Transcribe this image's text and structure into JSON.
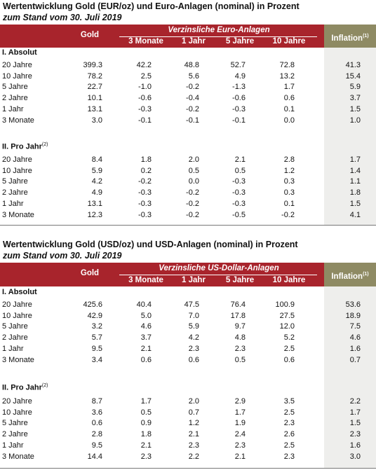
{
  "tables": [
    {
      "title": "Wertentwicklung Gold (EUR/oz) und Euro-Anlagen (nominal) in Prozent",
      "subtitle": "zum Stand vom 30. Juli 2019",
      "gold_header": "Gold",
      "span_header": "Verzinsliche Euro-Anlagen",
      "sub_headers": [
        "3 Monate",
        "1 Jahr",
        "5 Jahre",
        "10 Jahre"
      ],
      "inflation_header": "Inflation",
      "inflation_note": "(1)",
      "sections": [
        {
          "label": "I. Absolut",
          "note": "",
          "rows": [
            {
              "label": "20 Jahre",
              "values": [
                "399.3",
                "42.2",
                "48.8",
                "52.7",
                "72.8",
                "41.3"
              ]
            },
            {
              "label": "10 Jahre",
              "values": [
                "78.2",
                "2.5",
                "5.6",
                "4.9",
                "13.2",
                "15.4"
              ]
            },
            {
              "label": "5 Jahre",
              "values": [
                "22.7",
                "-1.0",
                "-0.2",
                "-1.3",
                "1.7",
                "5.9"
              ]
            },
            {
              "label": "2 Jahre",
              "values": [
                "10.1",
                "-0.6",
                "-0.4",
                "-0.6",
                "0.6",
                "3.7"
              ]
            },
            {
              "label": "1 Jahr",
              "values": [
                "13.1",
                "-0.3",
                "-0.2",
                "-0.3",
                "0.1",
                "1.5"
              ]
            },
            {
              "label": "3 Monate",
              "values": [
                "3.0",
                "-0.1",
                "-0.1",
                "-0.1",
                "0.0",
                "1.0"
              ]
            }
          ]
        },
        {
          "label": "II. Pro Jahr",
          "note": "(2)",
          "rows": [
            {
              "label": "20 Jahre",
              "values": [
                "8.4",
                "1.8",
                "2.0",
                "2.1",
                "2.8",
                "1.7"
              ]
            },
            {
              "label": "10 Jahre",
              "values": [
                "5.9",
                "0.2",
                "0.5",
                "0.5",
                "1.2",
                "1.4"
              ]
            },
            {
              "label": "5 Jahre",
              "values": [
                "4.2",
                "-0.2",
                "0.0",
                "-0.3",
                "0.3",
                "1.1"
              ]
            },
            {
              "label": "2 Jahre",
              "values": [
                "4.9",
                "-0.3",
                "-0.2",
                "-0.3",
                "0.3",
                "1.8"
              ]
            },
            {
              "label": "1 Jahr",
              "values": [
                "13.1",
                "-0.3",
                "-0.2",
                "-0.3",
                "0.1",
                "1.5"
              ]
            },
            {
              "label": "3 Monate",
              "values": [
                "12.3",
                "-0.3",
                "-0.2",
                "-0.5",
                "-0.2",
                "4.1"
              ]
            }
          ]
        }
      ]
    },
    {
      "title": "Wertentwicklung Gold (USD/oz) und USD-Anlagen (nominal) in Prozent",
      "subtitle": "zum Stand vom 30. Juli 2019",
      "gold_header": "Gold",
      "span_header": "Verzinsliche US-Dollar-Anlagen",
      "sub_headers": [
        "3 Monate",
        "1 Jahr",
        "5 Jahre",
        "10 Jahre"
      ],
      "inflation_header": "Inflation",
      "inflation_note": "(1)",
      "sections": [
        {
          "label": "I. Absolut",
          "note": "",
          "rows": [
            {
              "label": "20 Jahre",
              "values": [
                "425.6",
                "40.4",
                "47.5",
                "76.4",
                "100.9",
                "53.6"
              ]
            },
            {
              "label": "10 Jahre",
              "values": [
                "42.9",
                "5.0",
                "7.0",
                "17.8",
                "27.5",
                "18.9"
              ]
            },
            {
              "label": "5 Jahre",
              "values": [
                "3.2",
                "4.6",
                "5.9",
                "9.7",
                "12.0",
                "7.5"
              ]
            },
            {
              "label": "2 Jahre",
              "values": [
                "5.7",
                "3.7",
                "4.2",
                "4.8",
                "5.2",
                "4.6"
              ]
            },
            {
              "label": "1 Jahr",
              "values": [
                "9.5",
                "2.1",
                "2.3",
                "2.3",
                "2.5",
                "1.6"
              ]
            },
            {
              "label": "3 Monate",
              "values": [
                "3.4",
                "0.6",
                "0.6",
                "0.5",
                "0.6",
                "0.7"
              ]
            }
          ]
        },
        {
          "label": "II. Pro Jahr",
          "note": "(2)",
          "rows": [
            {
              "label": "20 Jahre",
              "values": [
                "8.7",
                "1.7",
                "2.0",
                "2.9",
                "3.5",
                "2.2"
              ]
            },
            {
              "label": "10 Jahre",
              "values": [
                "3.6",
                "0.5",
                "0.7",
                "1.7",
                "2.5",
                "1.7"
              ]
            },
            {
              "label": "5 Jahre",
              "values": [
                "0.6",
                "0.9",
                "1.2",
                "1.9",
                "2.3",
                "1.5"
              ]
            },
            {
              "label": "2 Jahre",
              "values": [
                "2.8",
                "1.8",
                "2.1",
                "2.4",
                "2.6",
                "2.3"
              ]
            },
            {
              "label": "1 Jahr",
              "values": [
                "9.5",
                "2.1",
                "2.3",
                "2.3",
                "2.5",
                "1.6"
              ]
            },
            {
              "label": "3 Monate",
              "values": [
                "14.4",
                "2.3",
                "2.2",
                "2.1",
                "2.3",
                "3.0"
              ]
            }
          ]
        }
      ]
    }
  ],
  "colors": {
    "header_red": "#a8242c",
    "inflation_header": "#8e8a63",
    "inflation_column": "#eeeeec"
  }
}
